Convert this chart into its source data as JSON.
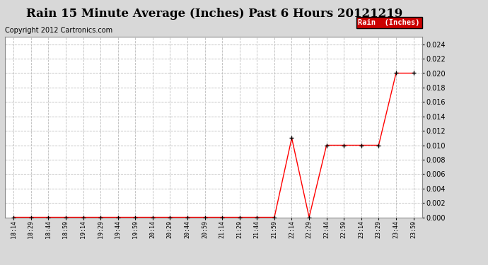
{
  "title": "Rain 15 Minute Average (Inches) Past 6 Hours 20121219",
  "copyright": "Copyright 2012 Cartronics.com",
  "legend_label": "Rain  (Inches)",
  "x_labels": [
    "18:14",
    "18:29",
    "18:44",
    "18:59",
    "19:14",
    "19:29",
    "19:44",
    "19:59",
    "20:14",
    "20:29",
    "20:44",
    "20:59",
    "21:14",
    "21:29",
    "21:44",
    "21:59",
    "22:14",
    "22:29",
    "22:44",
    "22:59",
    "23:14",
    "23:29",
    "23:44",
    "23:59"
  ],
  "y_values": [
    0.0,
    0.0,
    0.0,
    0.0,
    0.0,
    0.0,
    0.0,
    0.0,
    0.0,
    0.0,
    0.0,
    0.0,
    0.0,
    0.0,
    0.0,
    0.0,
    0.011,
    0.0,
    0.01,
    0.01,
    0.01,
    0.01,
    0.02,
    0.02
  ],
  "line_color": "red",
  "marker": "+",
  "marker_color": "black",
  "ylim": [
    0,
    0.025
  ],
  "yticks": [
    0.0,
    0.002,
    0.004,
    0.006,
    0.008,
    0.01,
    0.012,
    0.014,
    0.016,
    0.018,
    0.02,
    0.022,
    0.024
  ],
  "background_color": "#d8d8d8",
  "plot_background": "#ffffff",
  "grid_color": "#bbbbbb",
  "title_fontsize": 12,
  "copyright_fontsize": 7,
  "legend_bg": "#cc0000",
  "legend_fg": "#ffffff"
}
